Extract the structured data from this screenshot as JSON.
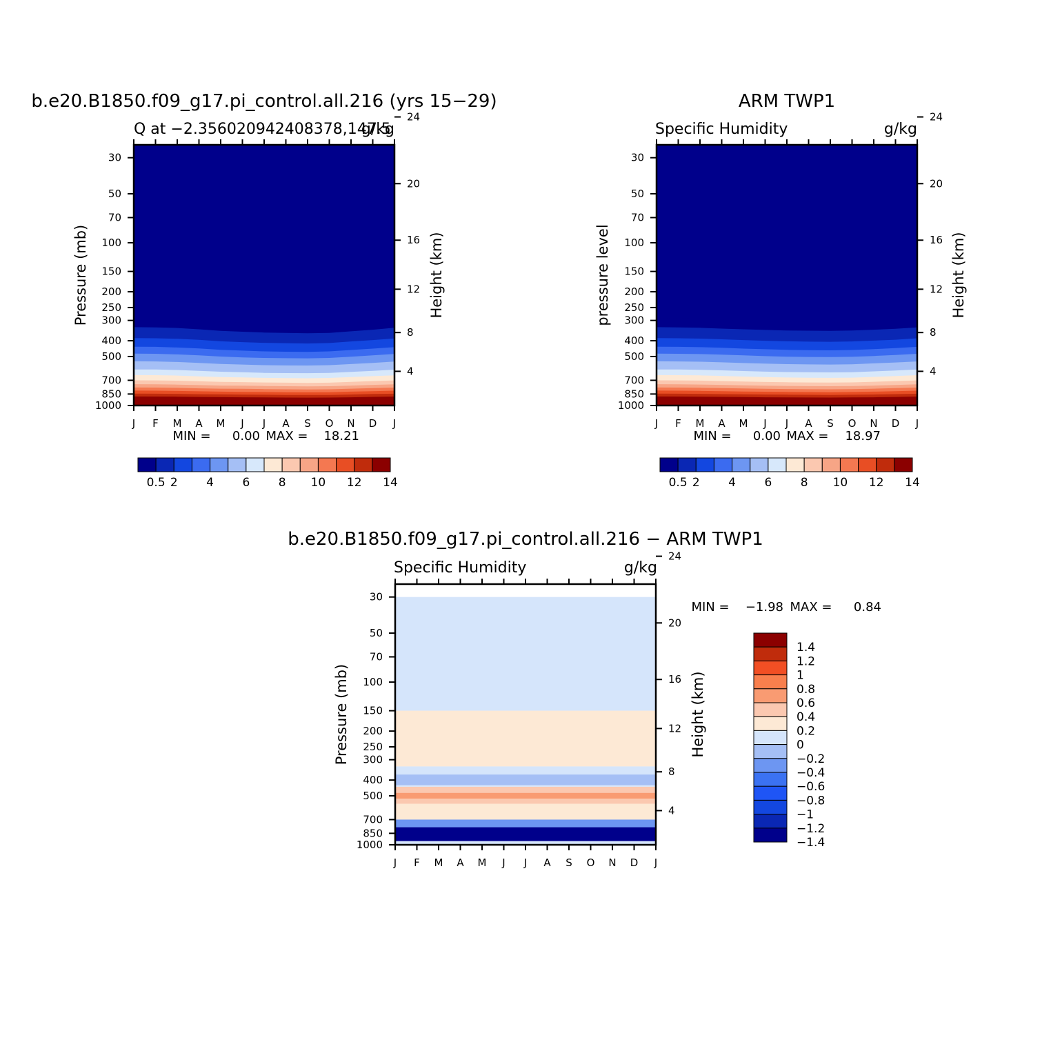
{
  "palette_seq": [
    "#00008B",
    "#0A27B4",
    "#1347E0",
    "#3B6BF0",
    "#6D96F2",
    "#A5BFF5",
    "#D7E8FB",
    "#FDE9D5",
    "#FBC8B0",
    "#F7A586",
    "#F47851",
    "#E84E24",
    "#C02C0C",
    "#8B0000"
  ],
  "palette_div": [
    "#00008B",
    "#0A27B4",
    "#1347E0",
    "#1F55F5",
    "#3B72F2",
    "#6D96F2",
    "#A5BFF5",
    "#D5E5FB",
    "#FDE9D5",
    "#FBC8B0",
    "#F99B72",
    "#F97F4D",
    "#F24F24",
    "#C02C0C",
    "#8B0000"
  ],
  "months": [
    "J",
    "F",
    "M",
    "A",
    "M",
    "J",
    "J",
    "A",
    "S",
    "O",
    "N",
    "D",
    "J"
  ],
  "pressure_ticks": [
    "30",
    "50",
    "70",
    "100",
    "150",
    "200",
    "250",
    "300",
    "400",
    "500",
    "700",
    "850",
    "1000"
  ],
  "height_ticks": [
    "24",
    "20",
    "16",
    "12",
    "8",
    "4"
  ],
  "seq_colorbar_labels": [
    "0.5",
    "2",
    "4",
    "6",
    "8",
    "10",
    "12",
    "14"
  ],
  "div_colorbar_labels": [
    "1.4",
    "1.2",
    "1",
    "0.8",
    "0.6",
    "0.4",
    "0.2",
    "0",
    "−0.2",
    "−0.4",
    "−0.6",
    "−0.8",
    "−1",
    "−1.2",
    "−1.4"
  ],
  "panels": [
    {
      "title": "b.e20.B1850.f09_g17.pi_control.all.216 (yrs 15−29)",
      "left_sub": "Q at −2.356020942408378,147.5",
      "right_sub": "g/kg",
      "ylabel": "Pressure (mb)",
      "ylabel2": "Height (km)",
      "stat_min_label": "MIN =",
      "stat_min": "0.00",
      "stat_max_label": "MAX =",
      "stat_max": "18.21"
    },
    {
      "title": "ARM TWP1",
      "left_sub": "Specific Humidity",
      "right_sub": "g/kg",
      "ylabel": "pressure level",
      "ylabel2": "Height (km)",
      "stat_min_label": "MIN =",
      "stat_min": "0.00",
      "stat_max_label": "MAX =",
      "stat_max": "18.97"
    },
    {
      "title": "b.e20.B1850.f09_g17.pi_control.all.216 − ARM TWP1",
      "left_sub": "Specific Humidity",
      "right_sub": "g/kg",
      "ylabel": "Pressure (mb)",
      "ylabel2": "Height (km)",
      "stat_min_label": "MIN =",
      "stat_min": "−1.98",
      "stat_max_label": "MAX =",
      "stat_max": "0.84"
    }
  ],
  "chart_data": [
    {
      "type": "heatmap",
      "title": "b.e20.B1850.f09_g17.pi_control.all.216 (yrs 15−29)",
      "subtitle": "Q at −2.356020942408378,147.5",
      "units": "g/kg",
      "x": [
        "J",
        "F",
        "M",
        "A",
        "M",
        "J",
        "J",
        "A",
        "S",
        "O",
        "N",
        "D",
        "J"
      ],
      "ylabel": "Pressure (mb)",
      "ylabel_right": "Height (km)",
      "y_levels": [
        30,
        50,
        70,
        100,
        150,
        200,
        250,
        300,
        400,
        500,
        700,
        850,
        1000
      ],
      "y_log": true,
      "colorbar_levels": [
        0.5,
        1,
        2,
        3,
        4,
        5,
        6,
        7,
        8,
        9,
        10,
        11,
        12,
        13,
        14
      ],
      "isolines_pressure": {
        "0.5": [
          290,
          290,
          292,
          298,
          305,
          310,
          314,
          316,
          318,
          318,
          312,
          303,
          295
        ],
        "1": [
          330,
          331,
          334,
          340,
          348,
          352,
          356,
          358,
          360,
          358,
          350,
          342,
          333
        ],
        "2": [
          385,
          386,
          389,
          395,
          403,
          408,
          412,
          414,
          416,
          413,
          404,
          396,
          387
        ],
        "3": [
          435,
          436,
          440,
          446,
          455,
          460,
          465,
          467,
          468,
          465,
          456,
          447,
          438
        ],
        "4": [
          480,
          481,
          485,
          492,
          500,
          506,
          510,
          512,
          513,
          510,
          501,
          492,
          482
        ],
        "5": [
          535,
          536,
          540,
          547,
          555,
          560,
          565,
          567,
          568,
          565,
          556,
          547,
          537
        ],
        "6": [
          600,
          601,
          605,
          612,
          620,
          625,
          630,
          632,
          633,
          630,
          621,
          612,
          602
        ],
        "7": [
          650,
          651,
          655,
          662,
          668,
          672,
          676,
          678,
          680,
          677,
          669,
          660,
          652
        ],
        "8": [
          700,
          701,
          704,
          710,
          716,
          718,
          722,
          724,
          726,
          724,
          716,
          708,
          701
        ],
        "9": [
          740,
          741,
          744,
          749,
          754,
          756,
          759,
          761,
          763,
          761,
          754,
          747,
          741
        ],
        "10": [
          775,
          776,
          779,
          784,
          788,
          790,
          793,
          795,
          797,
          795,
          788,
          782,
          776
        ],
        "11": [
          810,
          811,
          814,
          818,
          822,
          824,
          826,
          828,
          830,
          828,
          822,
          816,
          811
        ],
        "12": [
          845,
          846,
          848,
          852,
          855,
          857,
          859,
          861,
          862,
          861,
          856,
          850,
          846
        ],
        "13": [
          880,
          881,
          883,
          886,
          889,
          890,
          892,
          894,
          895,
          894,
          890,
          885,
          881
        ],
        "14": [
          920,
          921,
          923,
          926,
          928,
          929,
          931,
          932,
          933,
          932,
          929,
          925,
          921
        ]
      },
      "min": 0.0,
      "max": 18.21
    },
    {
      "type": "heatmap",
      "title": "ARM TWP1",
      "subtitle": "Specific Humidity",
      "units": "g/kg",
      "x": [
        "J",
        "F",
        "M",
        "A",
        "M",
        "J",
        "J",
        "A",
        "S",
        "O",
        "N",
        "D",
        "J"
      ],
      "ylabel": "pressure level",
      "ylabel_right": "Height (km)",
      "y_levels": [
        30,
        50,
        70,
        100,
        150,
        200,
        250,
        300,
        400,
        500,
        700,
        850,
        1000
      ],
      "y_log": true,
      "colorbar_levels": [
        0.5,
        1,
        2,
        3,
        4,
        5,
        6,
        7,
        8,
        9,
        10,
        11,
        12,
        13,
        14
      ],
      "isolines_pressure": {
        "0.5": [
          290,
          291,
          293,
          297,
          300,
          303,
          306,
          307,
          308,
          306,
          303,
          300,
          292
        ],
        "1": [
          330,
          331,
          333,
          337,
          340,
          343,
          346,
          347,
          348,
          346,
          342,
          338,
          331
        ],
        "2": [
          385,
          386,
          388,
          392,
          396,
          400,
          403,
          405,
          406,
          404,
          399,
          394,
          386
        ],
        "3": [
          435,
          436,
          438,
          442,
          447,
          451,
          455,
          457,
          458,
          456,
          450,
          444,
          436
        ],
        "4": [
          480,
          481,
          483,
          487,
          492,
          497,
          501,
          503,
          504,
          502,
          496,
          489,
          481
        ],
        "5": [
          535,
          536,
          538,
          543,
          548,
          553,
          557,
          559,
          560,
          558,
          551,
          544,
          536
        ],
        "6": [
          600,
          601,
          603,
          608,
          614,
          619,
          623,
          625,
          626,
          624,
          617,
          609,
          601
        ],
        "7": [
          650,
          651,
          653,
          658,
          664,
          669,
          673,
          675,
          676,
          674,
          667,
          659,
          651
        ],
        "8": [
          700,
          701,
          703,
          708,
          713,
          717,
          720,
          722,
          723,
          721,
          715,
          708,
          701
        ],
        "9": [
          740,
          741,
          743,
          747,
          752,
          755,
          758,
          760,
          761,
          759,
          754,
          748,
          741
        ],
        "10": [
          775,
          776,
          778,
          782,
          786,
          789,
          792,
          794,
          795,
          793,
          788,
          782,
          776
        ],
        "11": [
          810,
          811,
          813,
          817,
          820,
          823,
          825,
          827,
          828,
          826,
          822,
          817,
          811
        ],
        "12": [
          845,
          846,
          848,
          851,
          854,
          856,
          858,
          860,
          861,
          859,
          856,
          851,
          846
        ],
        "13": [
          880,
          881,
          883,
          885,
          888,
          890,
          891,
          893,
          894,
          892,
          890,
          886,
          881
        ],
        "14": [
          920,
          921,
          922,
          924,
          926,
          928,
          929,
          930,
          931,
          930,
          928,
          925,
          921
        ]
      },
      "min": 0.0,
      "max": 18.97
    },
    {
      "type": "heatmap",
      "title": "b.e20.B1850.f09_g17.pi_control.all.216 − ARM TWP1",
      "subtitle": "Specific Humidity",
      "units": "g/kg",
      "x": [
        "J",
        "F",
        "M",
        "A",
        "M",
        "J",
        "J",
        "A",
        "S",
        "O",
        "N",
        "D",
        "J"
      ],
      "ylabel": "Pressure (mb)",
      "ylabel_right": "Height (km)",
      "y_levels": [
        30,
        50,
        70,
        100,
        150,
        200,
        250,
        300,
        400,
        500,
        700,
        850,
        1000
      ],
      "y_log": true,
      "colorbar_levels": [
        -1.4,
        -1.2,
        -1,
        -0.8,
        -0.6,
        -0.4,
        -0.2,
        0,
        0.2,
        0.4,
        0.6,
        0.8,
        1,
        1.2,
        1.4
      ],
      "regions": [
        {
          "p_top": 30,
          "p_bottom": 150,
          "value": -0.1
        },
        {
          "p_top": 150,
          "p_bottom": 330,
          "value": 0.1
        },
        {
          "p_top": 330,
          "p_bottom": 440,
          "value": -0.1
        },
        {
          "p_top": 370,
          "p_bottom": 430,
          "value": -0.3
        },
        {
          "p_top": 440,
          "p_bottom": 560,
          "value": 0.3
        },
        {
          "p_top": 480,
          "p_bottom": 520,
          "value": 0.5
        },
        {
          "p_top": 560,
          "p_bottom": 700,
          "value": 0.1
        },
        {
          "p_top": 700,
          "p_bottom": 780,
          "value": -0.5
        },
        {
          "p_top": 780,
          "p_bottom": 950,
          "value": -1.5
        },
        {
          "p_top": 950,
          "p_bottom": 1000,
          "value": -0.2
        }
      ],
      "min": -1.98,
      "max": 0.84
    }
  ]
}
